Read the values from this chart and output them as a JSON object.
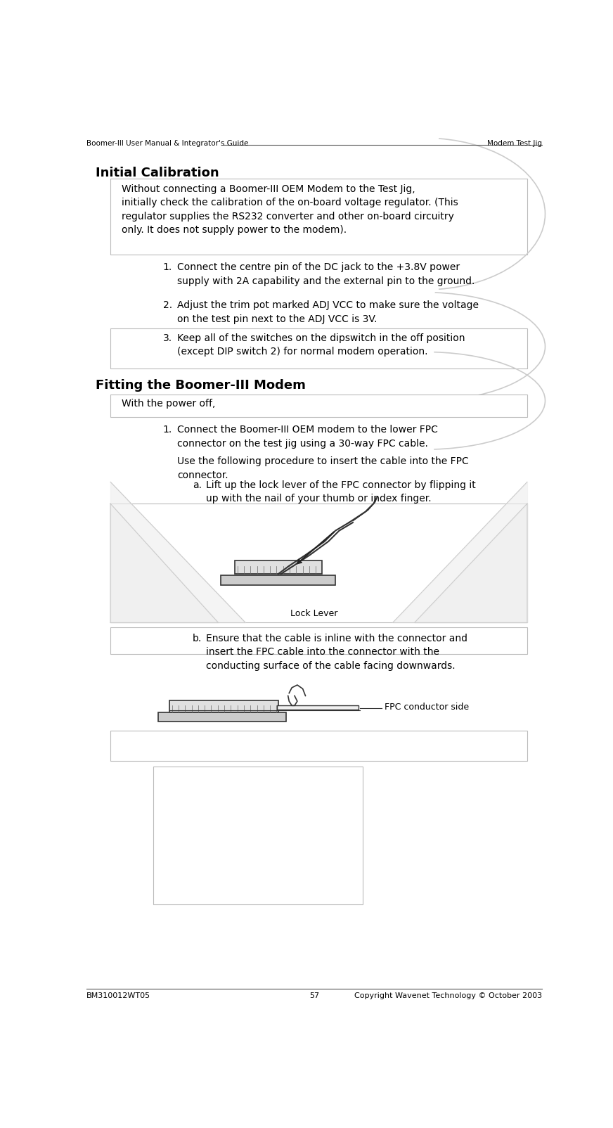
{
  "header_left": "Boomer-III User Manual & Integrator's Guide",
  "header_right": "Modem Test Jig",
  "footer_left": "BM310012WT05",
  "footer_center": "57",
  "footer_right": "Copyright Wavenet Technology © October 2003",
  "section1_title": "Initial Calibration",
  "section1_para": "Without connecting a Boomer-III OEM Modem to the Test Jig,\ninitially check the calibration of the on-board voltage regulator. (This\nregulator supplies the RS232 converter and other on-board circuitry\nonly. It does not supply power to the modem).",
  "section1_item1": "Connect the centre pin of the DC jack to the +3.8V power\nsupply with 2A capability and the external pin to the ground.",
  "section1_item2": "Adjust the trim pot marked ADJ VCC to make sure the voltage\non the test pin next to the ADJ VCC is 3V.",
  "section1_item3": "Keep all of the switches on the dipswitch in the off position\n(except DIP switch 2) for normal modem operation.",
  "section2_title": "Fitting the Boomer-III Modem",
  "section2_intro": "With the power off,",
  "section2_item1a": "Connect the Boomer-III OEM modem to the lower FPC\nconnector on the test jig using a 30-way FPC cable.",
  "section2_item1b": "Use the following procedure to insert the cable into the FPC\nconnector.",
  "sub_item_a": "Lift up the lock lever of the FPC connector by flipping it\nup with the nail of your thumb or index finger.",
  "sub_item_b": "Ensure that the cable is inline with the connector and\ninsert the FPC cable into the connector with the\nconducting surface of the cable facing downwards.",
  "label_lock_lever": "Lock Lever",
  "label_fpc_conductor": "FPC conductor side",
  "bg_color": "#ffffff",
  "text_color": "#000000",
  "box_edge_color": "#bbbbbb",
  "arc_color": "#cccccc",
  "font_size_header": 7.5,
  "font_size_title": 13,
  "font_size_body": 10,
  "font_size_caption": 9,
  "font_size_footer": 8
}
